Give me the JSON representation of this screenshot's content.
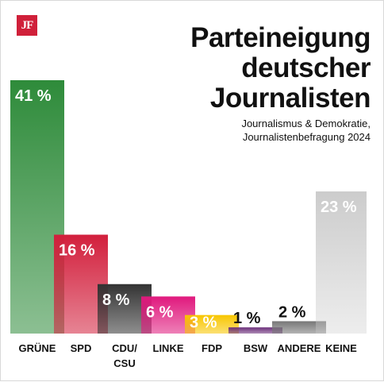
{
  "logo": {
    "text": "JF",
    "color": "#d0203a"
  },
  "header": {
    "title_lines": [
      "Parteineigung",
      "deutscher",
      "Journalisten"
    ],
    "subtitle_lines": [
      "Journalismus & Demokratie,",
      "Journalistenbefragung 2024"
    ]
  },
  "chart_data": {
    "type": "bar",
    "title": "Parteineigung deutscher Journalisten",
    "subtitle": "Journalismus & Demokratie, Journalistenbefragung 2024",
    "categories": [
      "GRÜNE",
      "SPD",
      "CDU/\nCSU",
      "LINKE",
      "FDP",
      "BSW",
      "ANDERE",
      "KEINE"
    ],
    "values": [
      41,
      16,
      8,
      6,
      3,
      1,
      2,
      23
    ],
    "value_labels": [
      "41 %",
      "16 %",
      "8 %",
      "6 %",
      "3 %",
      "1 %",
      "2 %",
      "23 %"
    ],
    "unit": "%",
    "colors": [
      "#2e8b3a",
      "#d21f3c",
      "#333333",
      "#e0197d",
      "#f8c600",
      "#6b2f7a",
      "#777777",
      "#cccccc"
    ],
    "label_colors": [
      "#ffffff",
      "#ffffff",
      "#ffffff",
      "#ffffff",
      "#ffffff",
      "#111111",
      "#111111",
      "#ffffff"
    ],
    "ylim": [
      0,
      41
    ],
    "grid": false,
    "legend": "none"
  }
}
